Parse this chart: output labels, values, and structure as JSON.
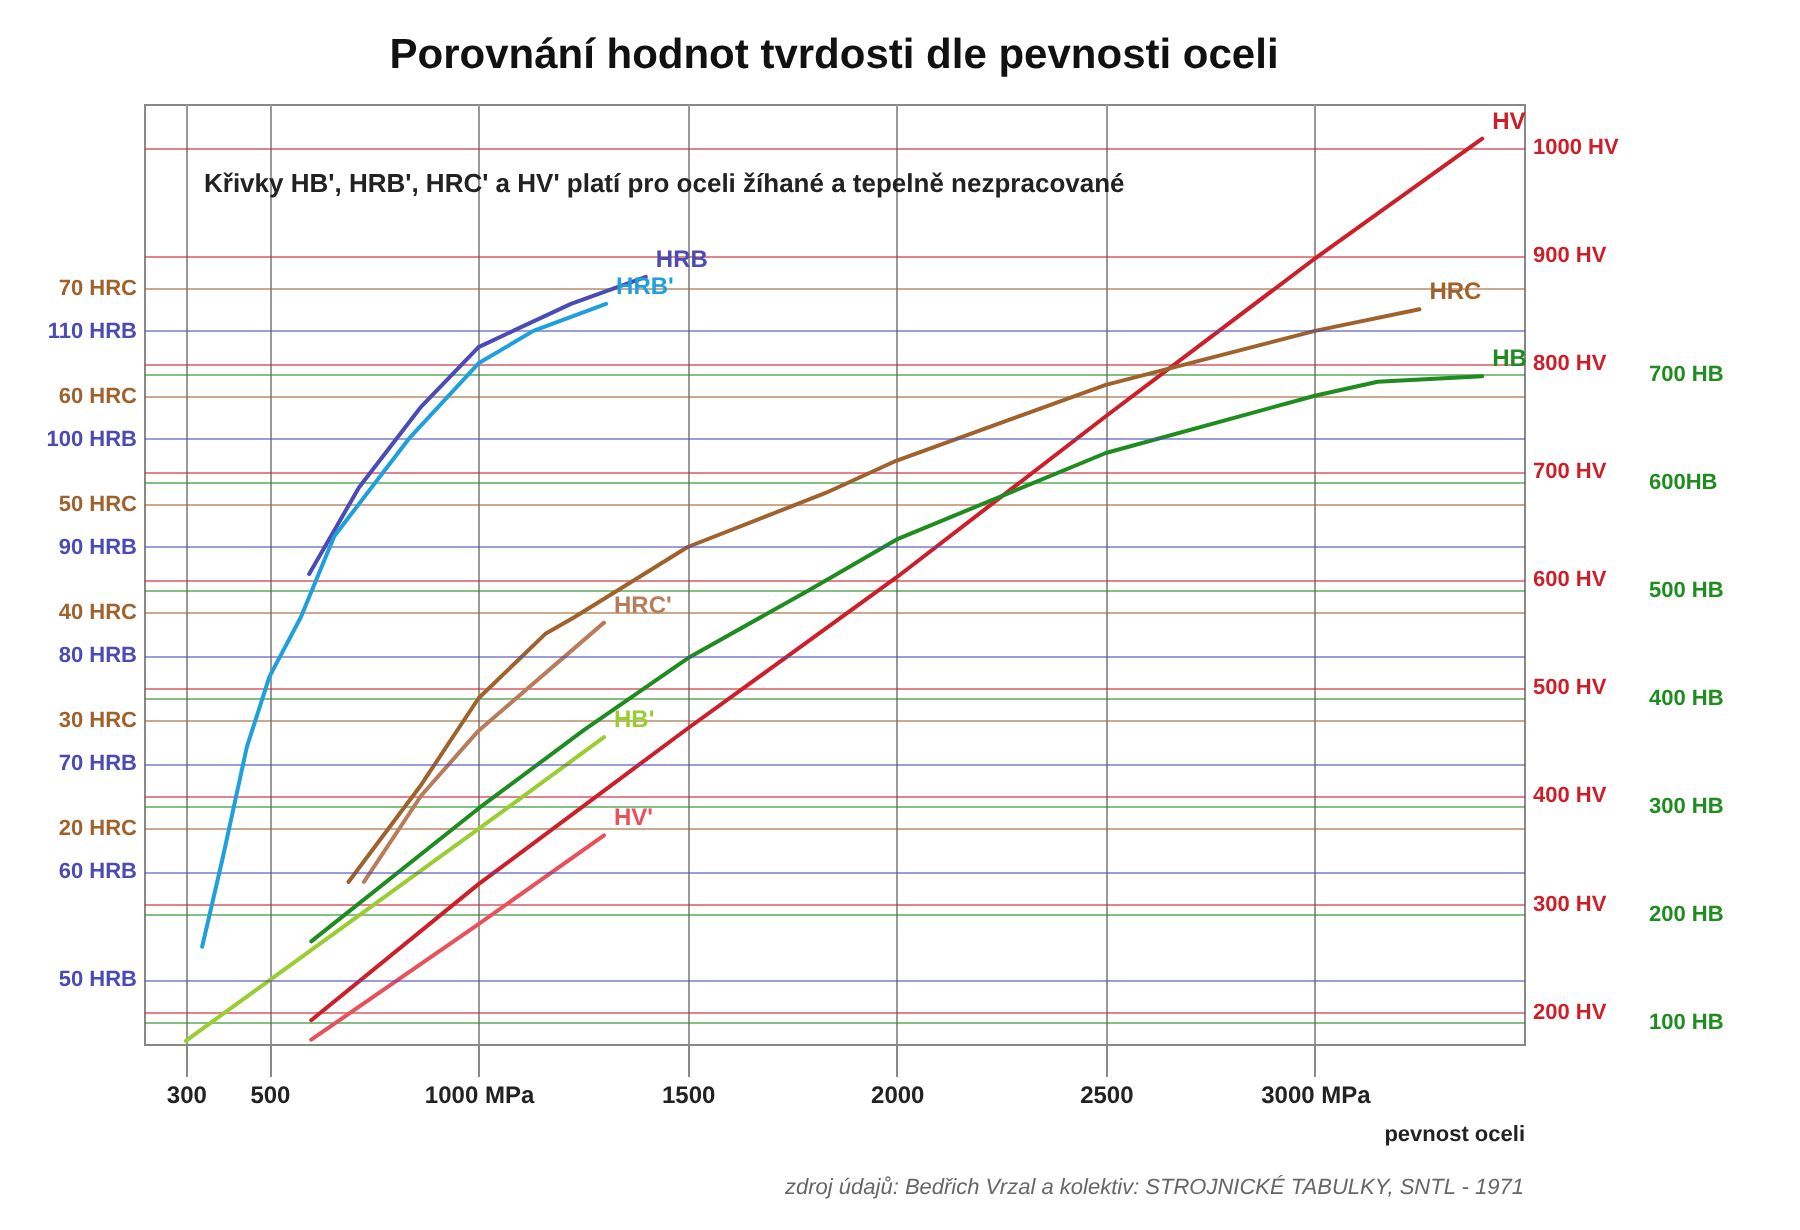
{
  "chart_data": [
    {
      "type": "line",
      "title": "Porovnání hodnot tvrdosti dle pevnosti oceli",
      "xlabel": "pevnost oceli",
      "annotations": [
        "Křivky HB', HRB', HRC' a HV' platí pro oceli žíhané a tepelně nezpracované",
        "zdroj údajů:  Bedřich Vrzal a kolektiv: STROJNICKÉ TABULKY, SNTL - 1971"
      ],
      "xlim": [
        200,
        3500
      ],
      "xticks": [
        300,
        500,
        {
          "value": 1000,
          "label": "1000 MPa"
        },
        1500,
        2000,
        2500,
        {
          "value": 3000,
          "label": "3000 MPa"
        }
      ],
      "ylim": [
        170,
        1040
      ],
      "yticks": [
        {
          "value": 200,
          "label": "200 HV"
        },
        {
          "value": 300,
          "label": "300 HV"
        },
        {
          "value": 400,
          "label": "400 HV"
        },
        {
          "value": 500,
          "label": "500 HV"
        },
        {
          "value": 600,
          "label": "600 HV"
        },
        {
          "value": 700,
          "label": "700 HV"
        },
        {
          "value": 800,
          "label": "800 HV"
        },
        {
          "value": 900,
          "label": "900 HV"
        },
        {
          "value": 1000,
          "label": "1000 HV"
        }
      ],
      "y2lim": [
        80,
        950
      ],
      "y2ticks": [
        {
          "value": 100,
          "label": "100 HB"
        },
        {
          "value": 200,
          "label": "200 HB"
        },
        {
          "value": 300,
          "label": "300 HB"
        },
        {
          "value": 400,
          "label": "400 HB"
        },
        {
          "value": 500,
          "label": "500 HB"
        },
        {
          "value": 600,
          "label": "600HB"
        },
        {
          "value": 700,
          "label": "700 HB"
        }
      ],
      "y3lim": [
        0,
        87
      ],
      "y3ticks": [
        {
          "value": 20,
          "label": "20 HRC"
        },
        {
          "value": 30,
          "label": "30 HRC"
        },
        {
          "value": 40,
          "label": "40 HRC"
        },
        {
          "value": 50,
          "label": "50 HRC"
        },
        {
          "value": 60,
          "label": "60 HRC"
        },
        {
          "value": 70,
          "label": "70 HRC"
        }
      ],
      "grid": true,
      "series": [
        {
          "name": "HV",
          "color": "#cc1f2a",
          "x": [
            600,
            1000,
            1500,
            2000,
            2500,
            3000,
            3400
          ],
          "values": [
            192,
            318,
            462,
            602,
            751,
            897,
            1008
          ]
        },
        {
          "name": "HV'",
          "color": "#e8505a",
          "x": [
            600,
            1000,
            1300
          ],
          "values": [
            174,
            281,
            363
          ]
        },
        {
          "name": "HB",
          "color": "#1e8c1e",
          "axis": "y2",
          "x": [
            600,
            1000,
            1250,
            1500,
            1790,
            2000,
            2500,
            3000,
            3150,
            3400
          ],
          "values": [
            175,
            298,
            370,
            437,
            500,
            547,
            627,
            680,
            693,
            698
          ]
        },
        {
          "name": "HB'",
          "color": "#9acd32",
          "axis": "y2",
          "x": [
            300,
            1000,
            1300
          ],
          "values": [
            83,
            279,
            364
          ]
        },
        {
          "name": "HRC",
          "color": "#a0622d",
          "axis": "y3",
          "x": [
            689,
            863,
            1000,
            1161,
            1229,
            1500,
            1830,
            2000,
            2500,
            3000,
            3250
          ],
          "values": [
            15,
            24,
            32,
            38,
            39.5,
            46,
            51,
            54,
            61,
            66,
            68
          ]
        },
        {
          "name": "HRC'",
          "color": "#b87c5a",
          "axis": "y3",
          "x": [
            726,
            863,
            1000,
            1300
          ],
          "values": [
            15,
            23,
            29,
            39
          ]
        }
      ]
    },
    {
      "type": "line",
      "tick_labels": "y",
      "grid": "y",
      "xlim": [
        200,
        3500
      ],
      "ylim": [
        44,
        131
      ],
      "yticks": [
        {
          "value": 50,
          "label": "50 HRB"
        },
        {
          "value": 60,
          "label": "60 HRB"
        },
        {
          "value": 70,
          "label": "70 HRB"
        },
        {
          "value": 80,
          "label": "80 HRB"
        },
        {
          "value": 90,
          "label": "90 HRB"
        },
        {
          "value": 100,
          "label": "100 HRB"
        },
        {
          "value": 110,
          "label": "110 HRB"
        }
      ],
      "series": [
        {
          "name": "HRB",
          "color": "#4b4bb5",
          "x": [
            595,
            714,
            863,
            1000,
            1221,
            1400
          ],
          "values": [
            87.5,
            95.5,
            103,
            108.5,
            112.5,
            115
          ]
        },
        {
          "name": "HRB'",
          "color": "#1ea0dc",
          "x": [
            339,
            387,
            446,
            500,
            575,
            655,
            833,
            1000,
            1131,
            1305
          ],
          "values": [
            53,
            61,
            71.5,
            78,
            83.5,
            91,
            100,
            107,
            110,
            112.5
          ]
        }
      ]
    }
  ]
}
